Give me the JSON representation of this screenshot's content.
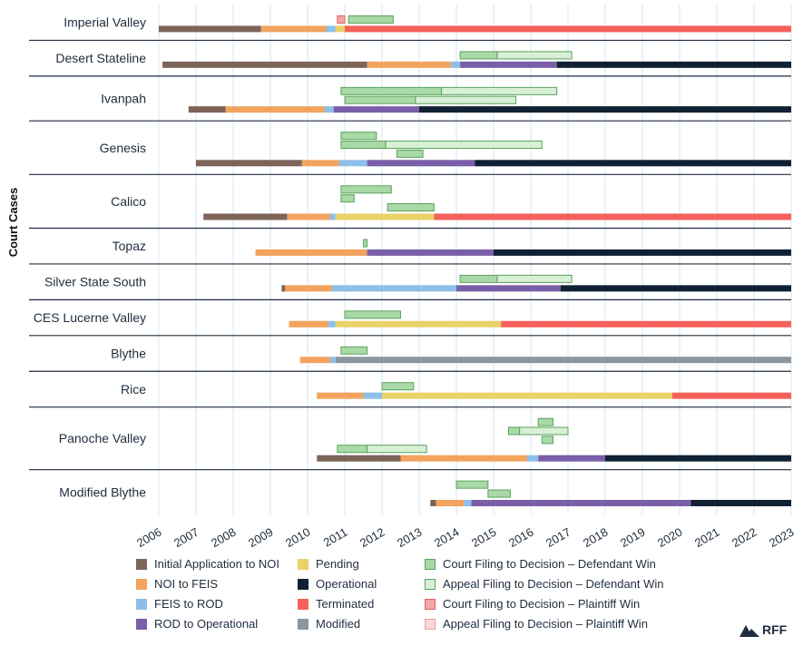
{
  "colors": {
    "initial_to_noi": "#7d6459",
    "noi_to_feis": "#f2a35e",
    "feis_to_rod": "#8dbfe8",
    "rod_to_operational": "#7a5ea8",
    "pending": "#ead168",
    "operational": "#0f2133",
    "terminated": "#f5605a",
    "modified": "#8b969e",
    "court_def": "#a8d9a6",
    "court_def_stroke": "#5aa35c",
    "appeal_def": "#d8f0d5",
    "appeal_def_stroke": "#5aa35c",
    "court_pl": "#f4a6a6",
    "court_pl_stroke": "#e06060",
    "appeal_pl": "#fbd6d6",
    "appeal_pl_stroke": "#e8a0a0",
    "grid": "#d4e6f3",
    "divider": "#1f2d3d"
  },
  "legend": [
    {
      "label": "Initial Application to NOI",
      "color": "#7d6459"
    },
    {
      "label": "NOI to FEIS",
      "color": "#f2a35e"
    },
    {
      "label": "FEIS to ROD",
      "color": "#8dbfe8"
    },
    {
      "label": "ROD to Operational",
      "color": "#7a5ea8"
    },
    {
      "label": "Pending",
      "color": "#ead168"
    },
    {
      "label": "Operational",
      "color": "#0f2133"
    },
    {
      "label": "Terminated",
      "color": "#f5605a"
    },
    {
      "label": "Modified",
      "color": "#8b969e"
    },
    {
      "label": "Court Filing to Decision – Defendant Win",
      "color": "#a8d9a6",
      "stroke": "#5aa35c"
    },
    {
      "label": "Appeal Filing to Decision – Defendant Win",
      "color": "#d8f0d5",
      "stroke": "#5aa35c"
    },
    {
      "label": "Court Filing to Decision – Plaintiff Win",
      "color": "#f4a6a6",
      "stroke": "#e06060"
    },
    {
      "label": "Appeal Filing to Decision – Plaintiff Win",
      "color": "#fbd6d6",
      "stroke": "#e8a0a0"
    }
  ],
  "logo_text": "RFF",
  "chart_data": {
    "type": "timeline",
    "ylabel": "Court Cases",
    "xlabel": "",
    "xlim": [
      2006,
      2023
    ],
    "x_ticks": [
      "2006",
      "2007",
      "2008",
      "2009",
      "2010",
      "2011",
      "2012",
      "2013",
      "2014",
      "2015",
      "2016",
      "2017",
      "2018",
      "2019",
      "2020",
      "2021",
      "2022",
      "2023"
    ],
    "grid": true,
    "legend_position": "bottom",
    "projects": [
      {
        "name": "Imperial Valley",
        "stages": [
          [
            "initial_to_noi",
            2006.0,
            2008.75
          ],
          [
            "noi_to_feis",
            2008.75,
            2010.5
          ],
          [
            "feis_to_rod",
            2010.5,
            2010.75
          ],
          [
            "pending",
            2010.75,
            2011.0
          ],
          [
            "terminated",
            2011.0,
            2023.0
          ]
        ],
        "litigation": [
          [
            0,
            "court_pl",
            2010.8,
            2011.0
          ],
          [
            0,
            "court_def",
            2011.1,
            2012.3
          ]
        ]
      },
      {
        "name": "Desert Stateline",
        "stages": [
          [
            "initial_to_noi",
            2006.1,
            2011.6
          ],
          [
            "noi_to_feis",
            2011.6,
            2013.85
          ],
          [
            "feis_to_rod",
            2013.85,
            2014.1
          ],
          [
            "rod_to_operational",
            2014.1,
            2016.7
          ],
          [
            "operational",
            2016.7,
            2023.0
          ]
        ],
        "litigation": [
          [
            0,
            "court_def",
            2014.1,
            2015.1
          ],
          [
            0,
            "appeal_def",
            2015.1,
            2017.1
          ]
        ]
      },
      {
        "name": "Ivanpah",
        "stages": [
          [
            "initial_to_noi",
            2006.8,
            2007.8
          ],
          [
            "noi_to_feis",
            2007.8,
            2010.45
          ],
          [
            "feis_to_rod",
            2010.45,
            2010.7
          ],
          [
            "rod_to_operational",
            2010.7,
            2013.0
          ],
          [
            "operational",
            2013.0,
            2023.0
          ]
        ],
        "litigation": [
          [
            0,
            "court_def",
            2010.9,
            2013.6
          ],
          [
            0,
            "appeal_def",
            2013.6,
            2016.7
          ],
          [
            1,
            "court_def",
            2011.0,
            2012.9
          ],
          [
            1,
            "appeal_def",
            2012.9,
            2015.6
          ]
        ]
      },
      {
        "name": "Genesis",
        "stages": [
          [
            "initial_to_noi",
            2007.0,
            2009.85
          ],
          [
            "noi_to_feis",
            2009.85,
            2010.85
          ],
          [
            "feis_to_rod",
            2010.85,
            2011.6
          ],
          [
            "rod_to_operational",
            2011.6,
            2014.5
          ],
          [
            "operational",
            2014.5,
            2023.0
          ]
        ],
        "litigation": [
          [
            0,
            "court_def",
            2010.9,
            2011.85
          ],
          [
            1,
            "court_def",
            2010.9,
            2012.1
          ],
          [
            1,
            "appeal_def",
            2012.1,
            2016.3
          ],
          [
            2,
            "court_def",
            2012.4,
            2013.1
          ]
        ]
      },
      {
        "name": "Calico",
        "stages": [
          [
            "initial_to_noi",
            2007.2,
            2009.45
          ],
          [
            "noi_to_feis",
            2009.45,
            2010.6
          ],
          [
            "feis_to_rod",
            2010.6,
            2010.75
          ],
          [
            "pending",
            2010.75,
            2013.4
          ],
          [
            "terminated",
            2013.4,
            2023.0
          ]
        ],
        "litigation": [
          [
            0,
            "court_def",
            2010.9,
            2012.25
          ],
          [
            1,
            "court_def",
            2010.9,
            2011.25
          ],
          [
            2,
            "court_def",
            2012.15,
            2013.4
          ]
        ]
      },
      {
        "name": "Topaz",
        "stages": [
          [
            "noi_to_feis",
            2008.6,
            2011.6
          ],
          [
            "rod_to_operational",
            2011.6,
            2015.0
          ],
          [
            "operational",
            2015.0,
            2023.0
          ]
        ],
        "litigation": [
          [
            0,
            "court_def",
            2011.5,
            2011.6
          ]
        ]
      },
      {
        "name": "Silver State South",
        "stages": [
          [
            "initial_to_noi",
            2009.3,
            2009.4
          ],
          [
            "noi_to_feis",
            2009.4,
            2010.65
          ],
          [
            "feis_to_rod",
            2010.65,
            2014.0
          ],
          [
            "rod_to_operational",
            2014.0,
            2016.8
          ],
          [
            "operational",
            2016.8,
            2023.0
          ]
        ],
        "litigation": [
          [
            0,
            "court_def",
            2014.1,
            2015.1
          ],
          [
            0,
            "appeal_def",
            2015.1,
            2017.1
          ]
        ]
      },
      {
        "name": "CES Lucerne Valley",
        "stages": [
          [
            "noi_to_feis",
            2009.5,
            2010.55
          ],
          [
            "feis_to_rod",
            2010.55,
            2010.75
          ],
          [
            "pending",
            2010.75,
            2015.2
          ],
          [
            "terminated",
            2015.2,
            2023.0
          ]
        ],
        "litigation": [
          [
            0,
            "court_def",
            2011.0,
            2012.5
          ]
        ]
      },
      {
        "name": "Blythe",
        "stages": [
          [
            "noi_to_feis",
            2009.8,
            2010.6
          ],
          [
            "feis_to_rod",
            2010.6,
            2010.75
          ],
          [
            "modified",
            2010.75,
            2023.0
          ]
        ],
        "litigation": [
          [
            0,
            "court_def",
            2010.9,
            2011.6
          ]
        ]
      },
      {
        "name": "Rice",
        "stages": [
          [
            "noi_to_feis",
            2010.25,
            2011.5
          ],
          [
            "feis_to_rod",
            2011.5,
            2012.0
          ],
          [
            "pending",
            2012.0,
            2019.8
          ],
          [
            "terminated",
            2019.8,
            2023.0
          ]
        ],
        "litigation": [
          [
            0,
            "court_def",
            2012.0,
            2012.85
          ]
        ]
      },
      {
        "name": "Panoche Valley",
        "stages": [
          [
            "initial_to_noi",
            2010.25,
            2012.5
          ],
          [
            "noi_to_feis",
            2012.5,
            2015.9
          ],
          [
            "feis_to_rod",
            2015.9,
            2016.2
          ],
          [
            "rod_to_operational",
            2016.2,
            2018.0
          ],
          [
            "operational",
            2018.0,
            2023.0
          ]
        ],
        "litigation": [
          [
            0,
            "court_def",
            2016.2,
            2016.6
          ],
          [
            1,
            "court_def",
            2015.4,
            2015.7
          ],
          [
            1,
            "appeal_def",
            2015.7,
            2017.0
          ],
          [
            2,
            "court_def",
            2016.3,
            2016.6
          ],
          [
            3,
            "court_def",
            2010.8,
            2011.6
          ],
          [
            3,
            "appeal_def",
            2011.6,
            2013.2
          ]
        ]
      },
      {
        "name": "Modified Blythe",
        "stages": [
          [
            "initial_to_noi",
            2013.3,
            2013.45
          ],
          [
            "noi_to_feis",
            2013.45,
            2014.2
          ],
          [
            "feis_to_rod",
            2014.2,
            2014.4
          ],
          [
            "rod_to_operational",
            2014.4,
            2020.3
          ],
          [
            "operational",
            2020.3,
            2023.0
          ]
        ],
        "litigation": [
          [
            0,
            "court_def",
            2014.0,
            2014.85
          ],
          [
            1,
            "court_def",
            2014.85,
            2015.45
          ]
        ]
      }
    ]
  }
}
